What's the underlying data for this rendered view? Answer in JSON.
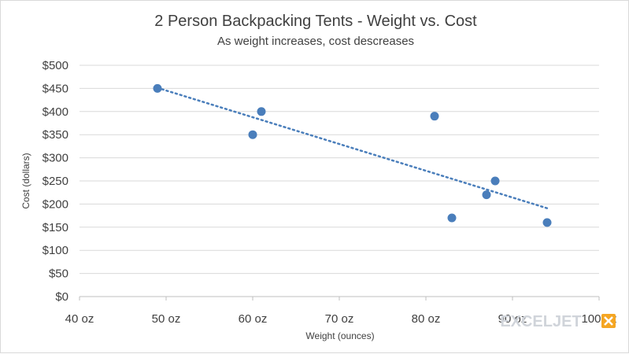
{
  "chart_data": {
    "type": "scatter",
    "title": "2 Person Backpacking Tents - Weight vs. Cost",
    "subtitle": "As weight increases, cost descreases",
    "xlabel": "Weight (ounces)",
    "ylabel": "Cost (dollars)",
    "xlim": [
      40,
      100
    ],
    "ylim": [
      0,
      500
    ],
    "xticks": [
      40,
      50,
      60,
      70,
      80,
      90,
      100
    ],
    "xtick_labels": [
      "40 oz",
      "50 oz",
      "60 oz",
      "70 oz",
      "80 oz",
      "90 oz",
      "100 oz"
    ],
    "yticks": [
      0,
      50,
      100,
      150,
      200,
      250,
      300,
      350,
      400,
      450,
      500
    ],
    "ytick_labels": [
      "$0",
      "$50",
      "$100",
      "$150",
      "$200",
      "$250",
      "$300",
      "$350",
      "$400",
      "$450",
      "$500"
    ],
    "grid": "horizontal",
    "trendline": {
      "type": "linear",
      "style": "dotted"
    },
    "series": [
      {
        "points": [
          {
            "x": 49,
            "y": 450
          },
          {
            "x": 60,
            "y": 350
          },
          {
            "x": 61,
            "y": 400
          },
          {
            "x": 81,
            "y": 390
          },
          {
            "x": 83,
            "y": 170
          },
          {
            "x": 87,
            "y": 220
          },
          {
            "x": 88,
            "y": 250
          },
          {
            "x": 94,
            "y": 160
          }
        ]
      }
    ],
    "colors": {
      "points": "#4a7ebb",
      "text": "#404040",
      "grid": "#d9d9d9"
    }
  },
  "watermark": {
    "text": "EXCELJET",
    "accent": "#f5a623"
  }
}
